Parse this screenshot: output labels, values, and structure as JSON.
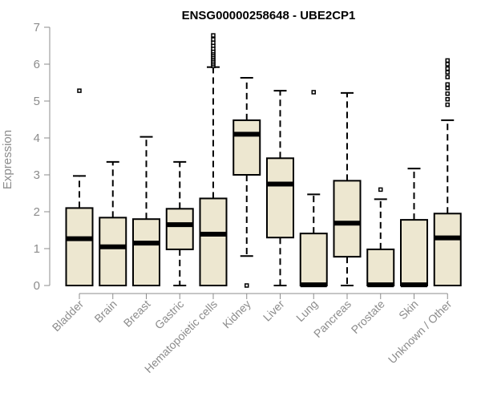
{
  "chart_data": {
    "type": "boxplot",
    "title": "ENSG00000258648 - UBE2CP1",
    "xlabel": "",
    "ylabel": "Expression",
    "ylim": [
      0,
      7
    ],
    "yticks": [
      0,
      1,
      2,
      3,
      4,
      5,
      6,
      7
    ],
    "grid": false,
    "colors": {
      "box_fill": "#ede7d0",
      "stroke": "#000000",
      "axis_text": "#8c8c8c"
    },
    "categories": [
      "Bladder",
      "Brain",
      "Breast",
      "Gastric",
      "Hematopoietic cells",
      "Kidney",
      "Liver",
      "Lung",
      "Pancreas",
      "Prostate",
      "Skin",
      "Unknown / Other"
    ],
    "boxes": [
      {
        "name": "Bladder",
        "whisker_low": 0,
        "q1": 0,
        "median": 1.27,
        "q3": 2.1,
        "whisker_high": 2.97,
        "outliers": [
          5.28
        ]
      },
      {
        "name": "Brain",
        "whisker_low": 0,
        "q1": 0,
        "median": 1.05,
        "q3": 1.84,
        "whisker_high": 3.35,
        "outliers": []
      },
      {
        "name": "Breast",
        "whisker_low": 0,
        "q1": 0,
        "median": 1.15,
        "q3": 1.8,
        "whisker_high": 4.03,
        "outliers": []
      },
      {
        "name": "Gastric",
        "whisker_low": 0,
        "q1": 0.98,
        "median": 1.65,
        "q3": 2.08,
        "whisker_high": 3.35,
        "outliers": []
      },
      {
        "name": "Hematopoietic cells",
        "whisker_low": 0,
        "q1": 0,
        "median": 1.39,
        "q3": 2.36,
        "whisker_high": 5.92,
        "outliers": [
          5.95,
          6.0,
          6.05,
          6.1,
          6.15,
          6.2,
          6.25,
          6.3,
          6.35,
          6.42,
          6.5,
          6.58,
          6.67,
          6.78
        ]
      },
      {
        "name": "Kidney",
        "whisker_low": 0.8,
        "q1": 3.0,
        "median": 4.1,
        "q3": 4.48,
        "whisker_high": 5.63,
        "outliers": [
          0
        ]
      },
      {
        "name": "Liver",
        "whisker_low": 0,
        "q1": 1.3,
        "median": 2.75,
        "q3": 3.45,
        "whisker_high": 5.28,
        "outliers": []
      },
      {
        "name": "Lung",
        "whisker_low": 0,
        "q1": 0,
        "median": 0.02,
        "q3": 1.41,
        "whisker_high": 2.47,
        "outliers": [
          5.24
        ]
      },
      {
        "name": "Pancreas",
        "whisker_low": 0,
        "q1": 0.78,
        "median": 1.69,
        "q3": 2.84,
        "whisker_high": 5.22,
        "outliers": []
      },
      {
        "name": "Prostate",
        "whisker_low": 0,
        "q1": 0,
        "median": 0.02,
        "q3": 0.98,
        "whisker_high": 2.34,
        "outliers": [
          2.6
        ]
      },
      {
        "name": "Skin",
        "whisker_low": 0,
        "q1": 0,
        "median": 0.02,
        "q3": 1.78,
        "whisker_high": 3.17,
        "outliers": []
      },
      {
        "name": "Unknown / Other",
        "whisker_low": 0,
        "q1": 0,
        "median": 1.29,
        "q3": 1.95,
        "whisker_high": 4.48,
        "outliers": [
          4.9,
          5.05,
          5.2,
          5.35,
          5.45,
          5.65,
          5.78,
          5.88,
          6.0,
          6.1
        ]
      }
    ]
  }
}
